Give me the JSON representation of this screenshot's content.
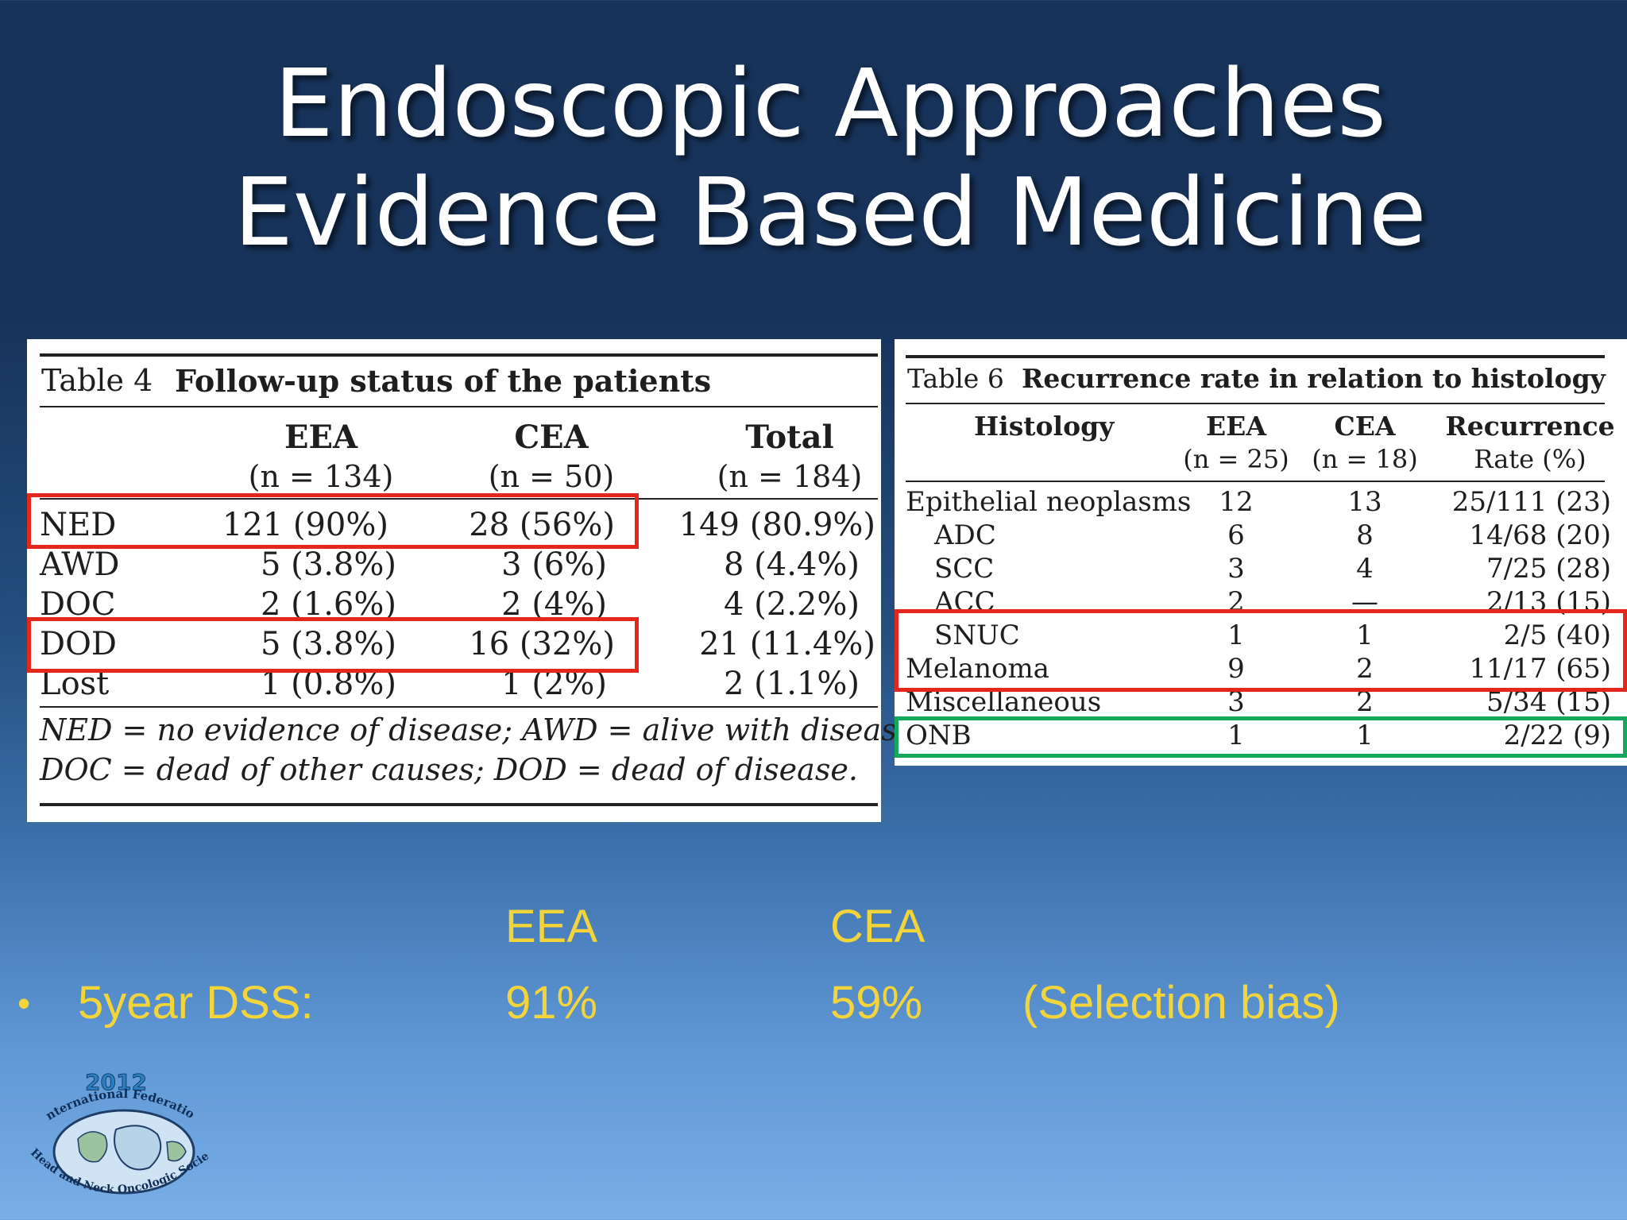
{
  "slide": {
    "title_line1": "Endoscopic Approaches",
    "title_line2": "Evidence Based Medicine"
  },
  "table4": {
    "caption_number": "Table 4",
    "caption_text": "Follow-up status of the patients",
    "columns": [
      {
        "name": "EEA",
        "n": "(n = 134)"
      },
      {
        "name": "CEA",
        "n": "(n = 50)"
      },
      {
        "name": "Total",
        "n": "(n = 184)"
      }
    ],
    "rows": [
      {
        "label": "NED",
        "eea": "121 (90%)",
        "cea": "28 (56%)",
        "total": "149 (80.9%)"
      },
      {
        "label": "AWD",
        "eea": "5 (3.8%)",
        "cea": "3 (6%)",
        "total": "8 (4.4%)"
      },
      {
        "label": "DOC",
        "eea": "2 (1.6%)",
        "cea": "2 (4%)",
        "total": "4 (2.2%)"
      },
      {
        "label": "DOD",
        "eea": "5 (3.8%)",
        "cea": "16 (32%)",
        "total": "21 (11.4%)"
      },
      {
        "label": "Lost",
        "eea": "1 (0.8%)",
        "cea": "1 (2%)",
        "total": "2 (1.1%)"
      }
    ],
    "footnote_line1": "NED = no evidence of disease; AWD = alive with disease;",
    "footnote_line2": "DOC = dead of other causes; DOD = dead of disease."
  },
  "table6": {
    "caption_number": "Table 6",
    "caption_text": "Recurrence rate in relation to histology",
    "header": {
      "histology": "Histology",
      "eea": "EEA",
      "eea_n": "(n = 25)",
      "cea": "CEA",
      "cea_n": "(n = 18)",
      "rate_line1": "Recurrence",
      "rate_line2": "Rate (%)"
    },
    "rows": [
      {
        "label": "Epithelial neoplasms",
        "eea": "12",
        "cea": "13",
        "rate": "25/111 (23)"
      },
      {
        "label": "ADC",
        "eea": "6",
        "cea": "8",
        "rate": "14/68 (20)"
      },
      {
        "label": "SCC",
        "eea": "3",
        "cea": "4",
        "rate": "7/25 (28)"
      },
      {
        "label": "ACC",
        "eea": "2",
        "cea": "—",
        "rate": "2/13 (15)"
      },
      {
        "label": "SNUC",
        "eea": "1",
        "cea": "1",
        "rate": "2/5 (40)"
      },
      {
        "label": "Melanoma",
        "eea": "9",
        "cea": "2",
        "rate": "11/17 (65)"
      },
      {
        "label": "Miscellaneous",
        "eea": "3",
        "cea": "2",
        "rate": "5/34 (15)"
      },
      {
        "label": "ONB",
        "eea": "1",
        "cea": "1",
        "rate": "2/22 (9)"
      }
    ]
  },
  "summary": {
    "col1_header": "EEA",
    "col2_header": "CEA",
    "bullet": "•",
    "metric_label": "5year DSS:",
    "eea_value": "91%",
    "cea_value": "59%",
    "note": "(Selection bias)"
  },
  "logo": {
    "year": "2012",
    "top_text": "International Federation",
    "bottom_text": "of Head and Neck Oncologic Societies"
  },
  "colors": {
    "highlight_red": "#e4271b",
    "highlight_green": "#13a85a",
    "summary_text": "#f4d43b",
    "title_text": "#ffffff"
  }
}
